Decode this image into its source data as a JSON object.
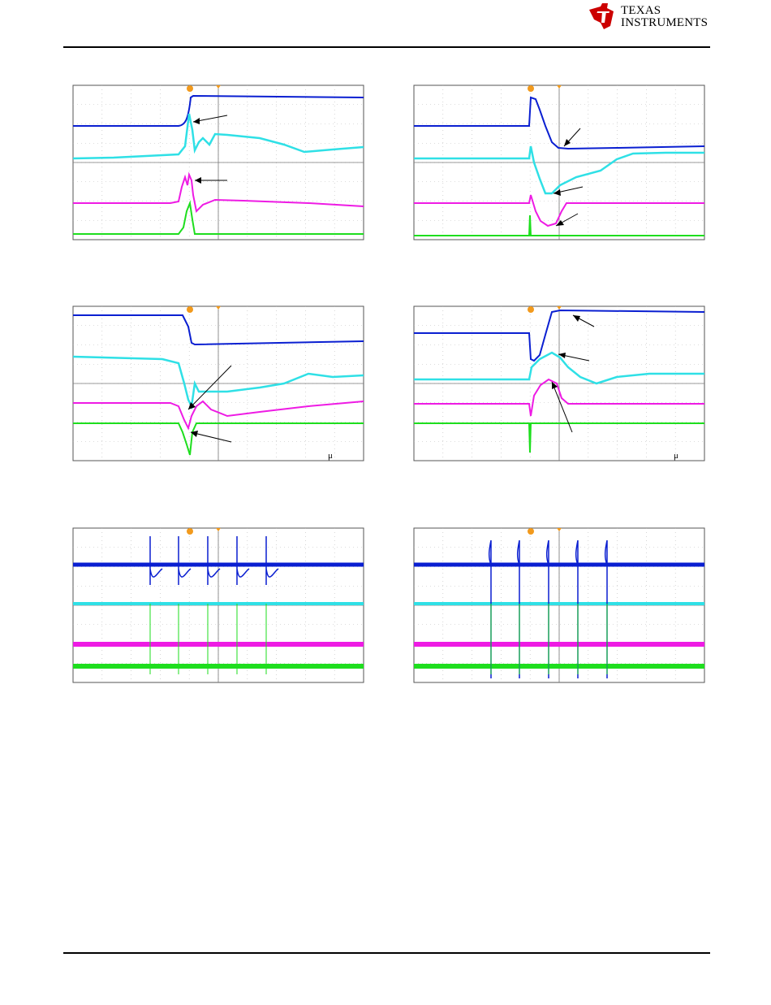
{
  "header": {
    "logo_line1": "TEXAS",
    "logo_line2": "INSTRUMENTS",
    "brand_color": "#cc0000"
  },
  "scope_colors": {
    "ch1": "#0a1fd1",
    "ch2": "#2fe0e6",
    "ch3": "#ee1be4",
    "ch4": "#1ede1e",
    "trigger": "#f29a1d"
  },
  "scopes": [
    {
      "id": "scope-1",
      "unit_glyph": ""
    },
    {
      "id": "scope-2",
      "unit_glyph": ""
    },
    {
      "id": "scope-3",
      "unit_glyph": "μ"
    },
    {
      "id": "scope-4",
      "unit_glyph": "μ"
    },
    {
      "id": "scope-5",
      "unit_glyph": ""
    },
    {
      "id": "scope-6",
      "unit_glyph": ""
    }
  ]
}
